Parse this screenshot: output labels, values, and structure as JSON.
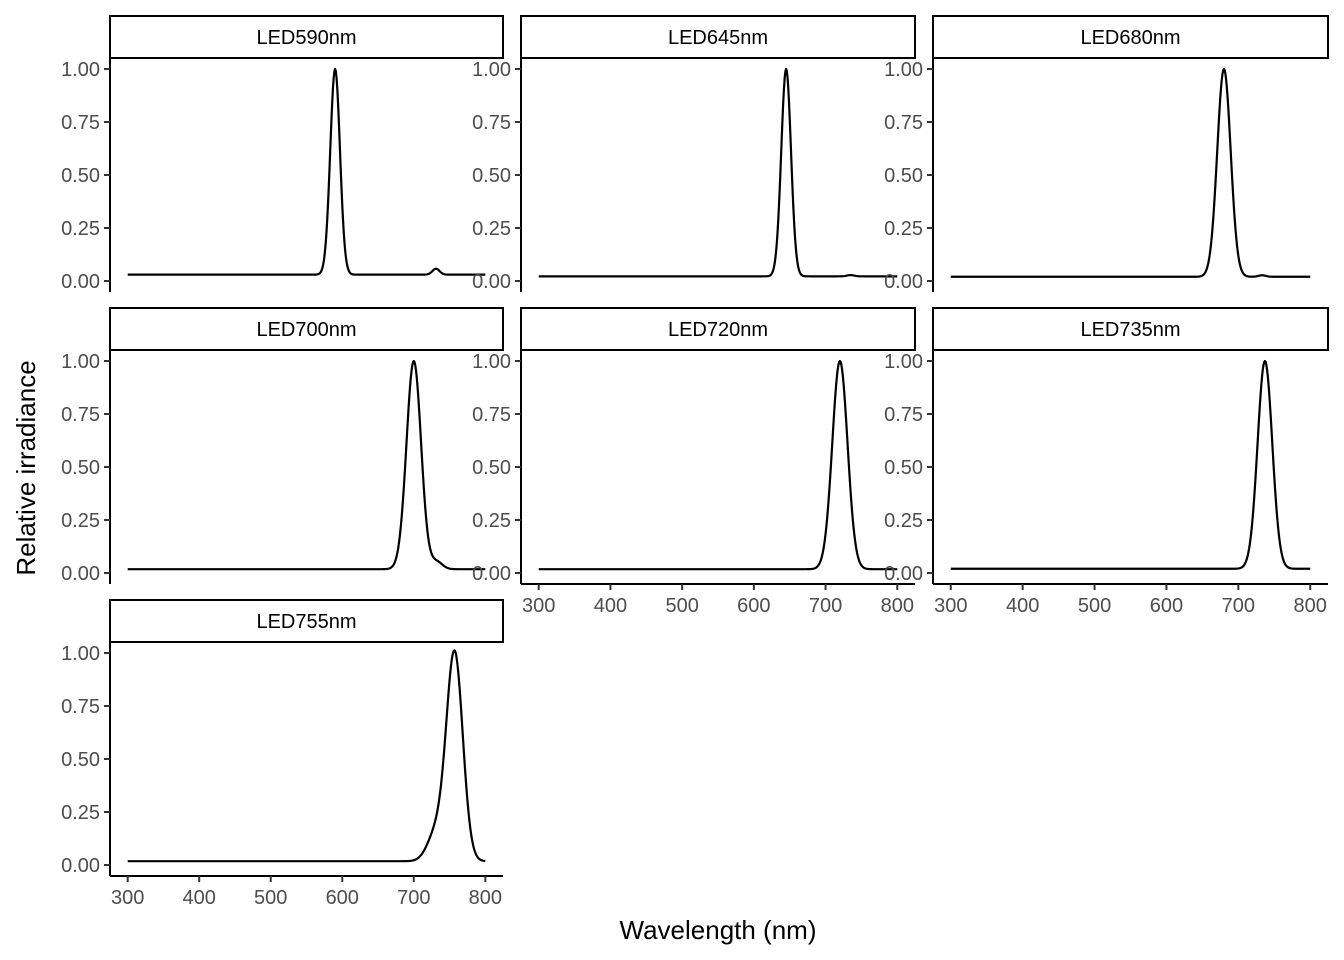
{
  "chart_data": {
    "type": "line",
    "layout": "facet_wrap",
    "xlabel": "Wavelength (nm)",
    "ylabel": "Relative irradiance",
    "xlim": [
      300,
      800
    ],
    "ylim": [
      0,
      1
    ],
    "x_ticks": [
      300,
      400,
      500,
      600,
      700,
      800
    ],
    "x_tick_labels": [
      "300",
      "400",
      "500",
      "600",
      "700",
      "800"
    ],
    "y_ticks": [
      0,
      0.25,
      0.5,
      0.75,
      1
    ],
    "y_tick_labels": [
      "0.00",
      "0.25",
      "0.50",
      "0.75",
      "1.00"
    ],
    "grid": false,
    "legend": "none",
    "panels": [
      {
        "name": "LED590nm",
        "peak": 590,
        "fwhm": 16,
        "baseline": 0.03,
        "extra": [
          {
            "center": 731,
            "height": 0.028,
            "width": 5
          }
        ]
      },
      {
        "name": "LED645nm",
        "peak": 645,
        "fwhm": 16,
        "baseline": 0.022,
        "extra": [
          {
            "center": 735,
            "height": 0.006,
            "width": 5
          }
        ]
      },
      {
        "name": "LED680nm",
        "peak": 680,
        "fwhm": 22,
        "baseline": 0.02,
        "extra": [
          {
            "center": 733,
            "height": 0.007,
            "width": 5
          }
        ]
      },
      {
        "name": "LED700nm",
        "peak": 700,
        "fwhm": 24,
        "baseline": 0.018,
        "extra": [
          {
            "center": 732,
            "height": 0.035,
            "width": 8
          }
        ]
      },
      {
        "name": "LED720nm",
        "peak": 720,
        "fwhm": 25,
        "baseline": 0.018,
        "extra": []
      },
      {
        "name": "LED735nm",
        "peak": 737,
        "fwhm": 24,
        "baseline": 0.02,
        "extra": []
      },
      {
        "name": "LED755nm",
        "peak": 757,
        "fwhm": 27,
        "baseline": 0.018,
        "extra": [
          {
            "center": 731,
            "height": 0.13,
            "width": 12
          }
        ]
      }
    ]
  }
}
